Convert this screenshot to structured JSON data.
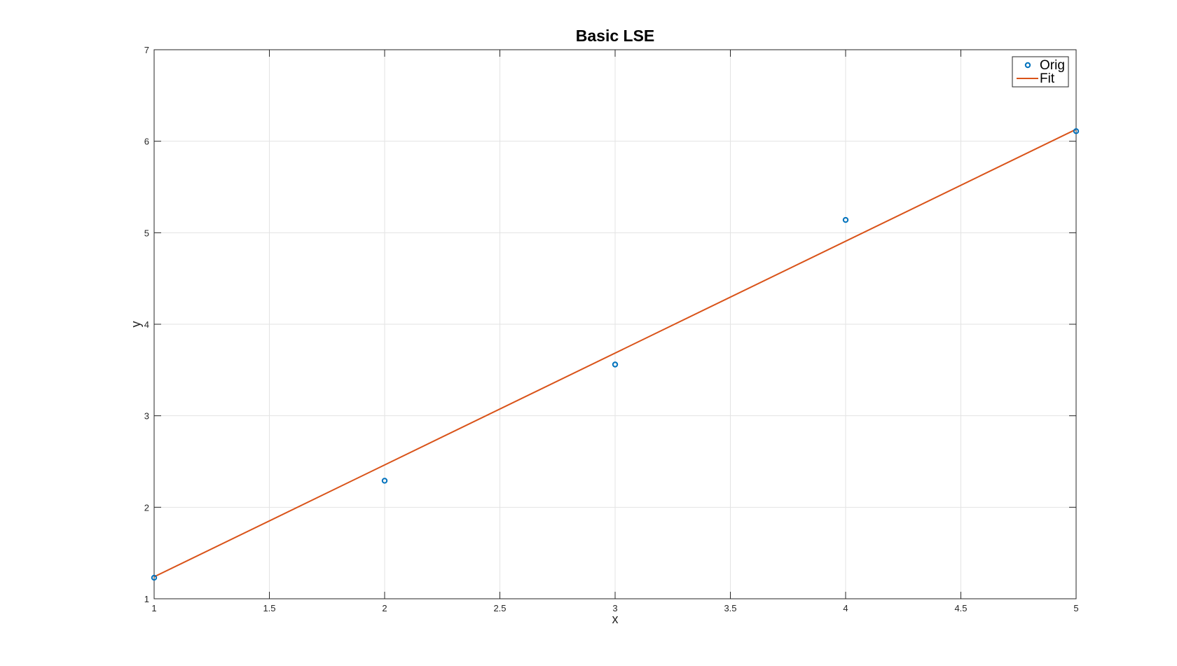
{
  "chart_data": {
    "type": "scatter",
    "title": "Basic LSE",
    "xlabel": "x",
    "ylabel": "y",
    "xlim": [
      1,
      5
    ],
    "ylim": [
      1,
      7
    ],
    "xticks": [
      1,
      1.5,
      2,
      2.5,
      3,
      3.5,
      4,
      4.5,
      5
    ],
    "xtick_labels": [
      "1",
      "1.5",
      "2",
      "2.5",
      "3",
      "3.5",
      "4",
      "4.5",
      "5"
    ],
    "yticks": [
      1,
      2,
      3,
      4,
      5,
      6,
      7
    ],
    "ytick_labels": [
      "1",
      "2",
      "3",
      "4",
      "5",
      "6",
      "7"
    ],
    "grid": true,
    "legend_position": "top-right",
    "series": [
      {
        "name": "Orig",
        "kind": "scatter",
        "marker": "circle-open",
        "color": "#0072BD",
        "x": [
          1,
          2,
          3,
          4,
          5
        ],
        "y": [
          1.23,
          2.29,
          3.56,
          5.14,
          6.11
        ]
      },
      {
        "name": "Fit",
        "kind": "line",
        "color": "#D95319",
        "x": [
          1,
          5
        ],
        "y": [
          1.24,
          6.13
        ]
      }
    ]
  }
}
